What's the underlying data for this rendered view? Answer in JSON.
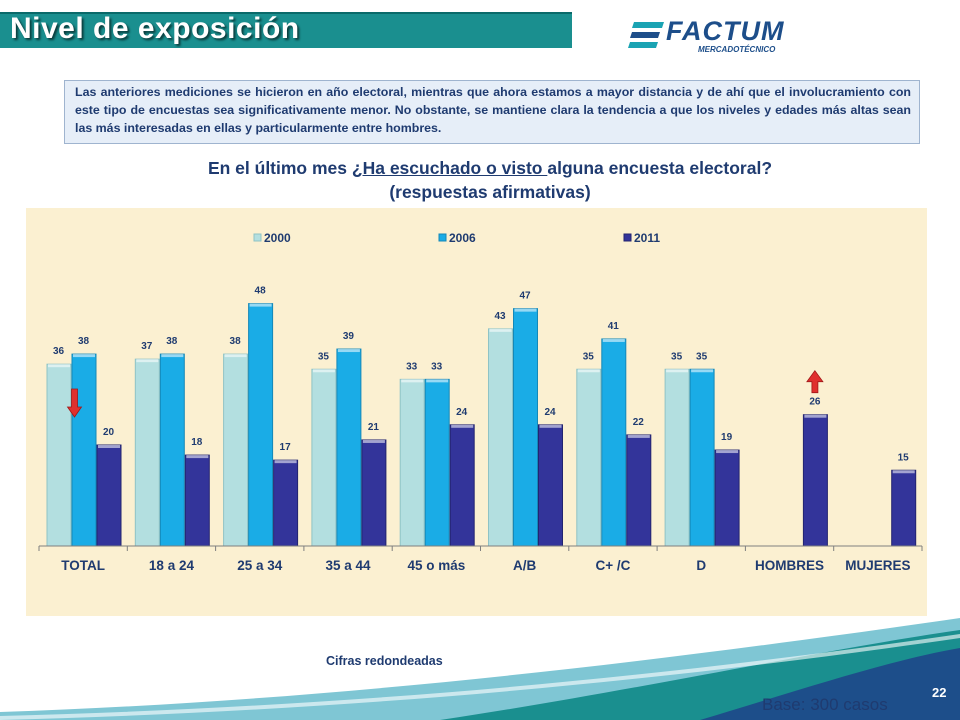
{
  "header": {
    "title": "Nivel de exposición",
    "logo_main": "FACTUM",
    "logo_sub": "MERCADOTÉCNICO"
  },
  "note": "Las anteriores mediciones se hicieron en año electoral, mientras que ahora estamos a mayor distancia y de ahí que el involucramiento con este tipo de encuestas sea significativamente menor. No obstante, se mantiene clara la tendencia a que los niveles y edades más altas sean las más interesadas en ellas y particularmente entre hombres.",
  "question": {
    "pre": "En el último mes ",
    "underlined": "¿Ha escuchado o visto ",
    "post": "alguna encuesta electoral?",
    "line2": "(respuestas afirmativas)"
  },
  "footer": {
    "cifras": "Cifras redondeadas",
    "base": "Base: 300 casos",
    "page": "22"
  },
  "colors": {
    "c2000": "#b3dfe0",
    "c2006": "#1aace6",
    "c2011": "#33349a",
    "teal": "#1a8f8f",
    "navy": "#1f3b70",
    "arrow": "#e0302e"
  },
  "chart_data": {
    "type": "bar",
    "categories": [
      "TOTAL",
      "18 a 24",
      "25 a 34",
      "35 a 44",
      "45 o más",
      "A/B",
      "C+ /C",
      "D",
      "HOMBRES",
      "MUJERES"
    ],
    "series": [
      {
        "name": "2000",
        "values": [
          36,
          37,
          38,
          35,
          33,
          43,
          35,
          35,
          null,
          null
        ]
      },
      {
        "name": "2006",
        "values": [
          38,
          38,
          48,
          39,
          33,
          47,
          41,
          35,
          null,
          null
        ]
      },
      {
        "name": "2011",
        "values": [
          20,
          18,
          17,
          21,
          24,
          24,
          22,
          19,
          26,
          15
        ]
      }
    ],
    "ylim": [
      0,
      60
    ],
    "legend": "top",
    "grid": false,
    "annotations": [
      {
        "type": "down-arrow",
        "category": "TOTAL",
        "series": "2011"
      },
      {
        "type": "up-arrow",
        "category": "HOMBRES",
        "series": "2011"
      }
    ]
  }
}
